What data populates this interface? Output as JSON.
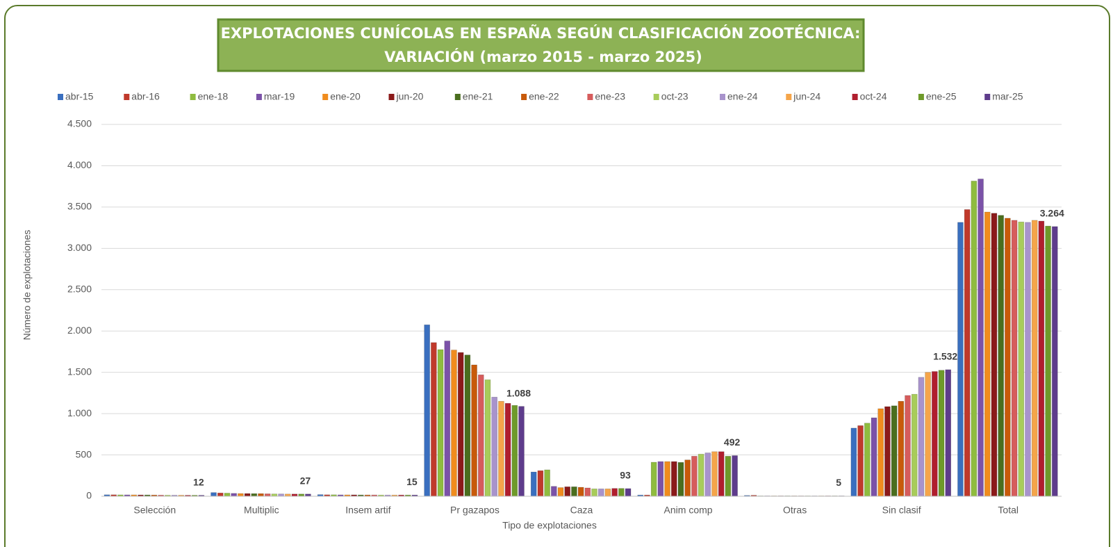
{
  "chart_data": {
    "type": "bar",
    "title": [
      "EXPLOTACIONES CUNÍCOLAS EN ESPAÑA SEGÚN CLASIFICACIÓN ZOOTÉCNICA:",
      "VARIACIÓN  (marzo 2015 - marzo 2025)"
    ],
    "y_label": "Número de explotaciones",
    "x_label": "Tipo de explotaciones",
    "categories": [
      "Selección",
      "Multiplic",
      "Insem artif",
      "Pr gazapos",
      "Caza",
      "Anim comp",
      "Otras",
      "Sin clasif",
      "Total"
    ],
    "ylim": [
      0,
      4500
    ],
    "yticks": [
      0,
      500,
      {
        "value": 1000,
        "label": "1.000"
      },
      {
        "value": 1500,
        "label": "1.500"
      },
      {
        "value": 2000,
        "label": "2.000"
      },
      {
        "value": 2500,
        "label": "2.500"
      },
      {
        "value": 3000,
        "label": "3.000"
      },
      {
        "value": 3500,
        "label": "3.500"
      },
      {
        "value": 4000,
        "label": "4.000"
      },
      {
        "value": 4500,
        "label": "4.500"
      }
    ],
    "grid": true,
    "legend": "top",
    "series": [
      {
        "name": "abr-15",
        "color": "#3a6fbf",
        "values": [
          18,
          45,
          20,
          2075,
          294,
          15,
          10,
          825,
          3315
        ]
      },
      {
        "name": "abr-16",
        "color": "#c0392b",
        "values": [
          18,
          40,
          18,
          1860,
          310,
          15,
          12,
          855,
          3470
        ]
      },
      {
        "name": "ene-18",
        "color": "#8fbc3f",
        "values": [
          17,
          38,
          18,
          1775,
          320,
          412,
          5,
          885,
          3815
        ]
      },
      {
        "name": "mar-19",
        "color": "#7b52a8",
        "values": [
          17,
          35,
          17,
          1880,
          120,
          420,
          5,
          950,
          3840
        ]
      },
      {
        "name": "ene-20",
        "color": "#f08c1e",
        "values": [
          17,
          33,
          17,
          1770,
          105,
          420,
          5,
          1060,
          3440
        ]
      },
      {
        "name": "jun-20",
        "color": "#8b1a1a",
        "values": [
          16,
          33,
          17,
          1740,
          115,
          420,
          5,
          1085,
          3425
        ]
      },
      {
        "name": "ene-21",
        "color": "#4a6e1e",
        "values": [
          16,
          32,
          16,
          1710,
          115,
          410,
          5,
          1095,
          3400
        ]
      },
      {
        "name": "ene-22",
        "color": "#c85a0a",
        "values": [
          15,
          32,
          16,
          1590,
          109,
          440,
          5,
          1150,
          3365
        ]
      },
      {
        "name": "ene-23",
        "color": "#d65c5c",
        "values": [
          14,
          30,
          16,
          1470,
          101,
          485,
          5,
          1220,
          3340
        ]
      },
      {
        "name": "oct-23",
        "color": "#a8cc5a",
        "values": [
          13,
          28,
          15,
          1410,
          90,
          510,
          5,
          1235,
          3320
        ]
      },
      {
        "name": "ene-24",
        "color": "#a893cc",
        "values": [
          13,
          28,
          15,
          1200,
          90,
          525,
          5,
          1440,
          3315
        ]
      },
      {
        "name": "jun-24",
        "color": "#f5a54a",
        "values": [
          13,
          27,
          15,
          1150,
          90,
          540,
          5,
          1500,
          3340
        ]
      },
      {
        "name": "oct-24",
        "color": "#b01e2e",
        "values": [
          12,
          27,
          15,
          1125,
          95,
          540,
          5,
          1510,
          3330
        ]
      },
      {
        "name": "ene-25",
        "color": "#6e9a2a",
        "values": [
          12,
          27,
          15,
          1100,
          95,
          485,
          5,
          1525,
          3270
        ]
      },
      {
        "name": "mar-25",
        "color": "#5e3c8c",
        "values": [
          12,
          27,
          15,
          1088,
          93,
          492,
          5,
          1532,
          3264
        ],
        "value_labels": [
          "12",
          "27",
          "15",
          "1.088",
          "93",
          "492",
          "5",
          "1.532",
          "3.264"
        ]
      }
    ]
  }
}
